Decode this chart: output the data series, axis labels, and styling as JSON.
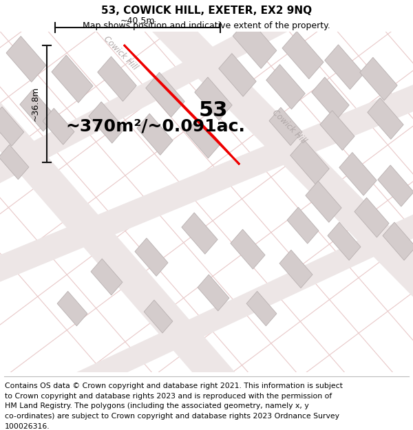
{
  "title": "53, COWICK HILL, EXETER, EX2 9NQ",
  "subtitle": "Map shows position and indicative extent of the property.",
  "area_label": "~370m²/~0.091ac.",
  "number_label": "53",
  "width_label": "~40.5m",
  "height_label": "~36.8m",
  "map_bg_color": "#f7f2f2",
  "footer_text_line1": "Contains OS data © Crown copyright and database right 2021. This information is subject",
  "footer_text_line2": "to Crown copyright and database rights 2023 and is reproduced with the permission of",
  "footer_text_line3": "HM Land Registry. The polygons (including the associated geometry, namely x, y",
  "footer_text_line4": "co-ordinates) are subject to Crown copyright and database rights 2023 Ordnance Survey",
  "footer_text_line5": "100026316.",
  "road_label_color": "#b0a8a8",
  "building_color": "#d4cccc",
  "building_edge_color": "#b8b0b0",
  "property_color": "#ee0000",
  "dim_line_color": "#111111",
  "title_fontsize": 11,
  "subtitle_fontsize": 9,
  "area_fontsize": 18,
  "number_fontsize": 22,
  "dim_fontsize": 9,
  "footer_fontsize": 7.8,
  "road_line_color": "#e8c8c8",
  "road_band_color": "#ede6e6"
}
